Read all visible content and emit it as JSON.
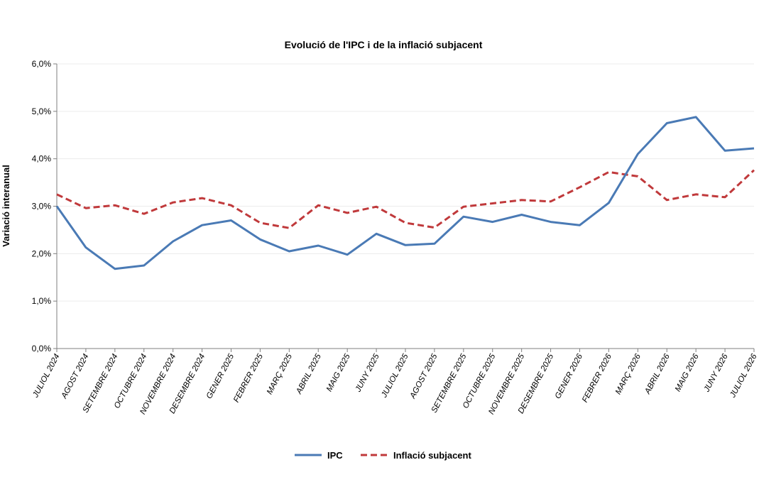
{
  "chart_data": {
    "type": "line",
    "title": "Evolució de l'IPC i de la inflació subjacent",
    "ylabel": "Variació interanual",
    "xlabel": "",
    "ylim": [
      0,
      6
    ],
    "yticks": [
      "0,0%",
      "1,0%",
      "2,0%",
      "3,0%",
      "4,0%",
      "5,0%",
      "6,0%"
    ],
    "grid": true,
    "legend_position": "bottom",
    "categories": [
      "JULIOL 2024",
      "AGOST 2024",
      "SETEMBRE 2024",
      "OCTUBRE 2024",
      "NOVEMBRE 2024",
      "DESEMBRE 2024",
      "GENER 2025",
      "FEBRER 2025",
      "MARÇ 2025",
      "ABRIL 2025",
      "MAIG 2025",
      "JUNY 2025",
      "JULIOL 2025",
      "AGOST 2025",
      "SETEMBRE 2025",
      "OCTUBRE 2025",
      "NOVEMBRE 2025",
      "DESEMBRE 2025",
      "GENER 2026",
      "FEBRER 2026",
      "MARÇ 2026",
      "ABRIL 2026",
      "MAIG 2026",
      "JUNY 2026",
      "JULIOL 2026"
    ],
    "series": [
      {
        "name": "IPC",
        "color": "#4a7ab5",
        "style": "solid",
        "values": [
          3.0,
          2.13,
          1.68,
          1.75,
          2.26,
          2.6,
          2.7,
          2.3,
          2.05,
          2.17,
          1.98,
          2.42,
          2.18,
          2.21,
          2.78,
          2.67,
          2.82,
          2.67,
          2.6,
          3.07,
          4.1,
          4.75,
          4.88,
          4.17,
          4.22
        ]
      },
      {
        "name": "Inflació subjacent",
        "color": "#c0393b",
        "style": "dashed",
        "values": [
          3.25,
          2.96,
          3.02,
          2.84,
          3.08,
          3.17,
          3.02,
          2.65,
          2.54,
          3.02,
          2.86,
          2.99,
          2.65,
          2.55,
          2.99,
          3.06,
          3.13,
          3.1,
          3.4,
          3.72,
          3.63,
          3.13,
          3.25,
          3.19,
          3.76
        ]
      }
    ]
  }
}
